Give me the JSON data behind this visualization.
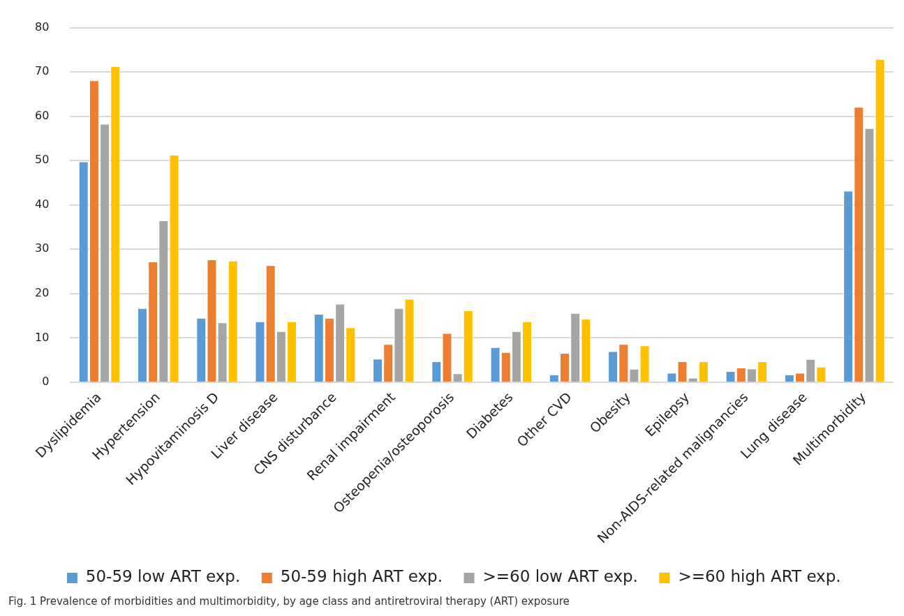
{
  "chart_data": {
    "type": "bar",
    "categories": [
      "Dyslipidemia",
      "Hypertension",
      "Hypovitaminosis D",
      "Liver disease",
      "CNS disturbance",
      "Renal impairment",
      "Osteopenia/osteoporosis",
      "Diabetes",
      "Other CVD",
      "Obesity",
      "Epilepsy",
      "Non-AIDS-related malignancies",
      "Lung disease",
      "Multimorbidity"
    ],
    "series": [
      {
        "name": "50-59 low ART exp.",
        "color": "#5b9bd5",
        "values": [
          49.8,
          16.7,
          14.5,
          13.7,
          15.4,
          5.3,
          4.7,
          7.9,
          1.7,
          7.0,
          2.1,
          2.5,
          1.7,
          43.2
        ]
      },
      {
        "name": "50-59 high ART exp.",
        "color": "#ed7d31",
        "values": [
          68.1,
          27.2,
          27.7,
          26.4,
          14.5,
          8.6,
          11.1,
          6.8,
          6.6,
          8.6,
          4.7,
          3.3,
          2.1,
          62.1
        ]
      },
      {
        "name": ">=60 low ART exp.",
        "color": "#a5a5a5",
        "values": [
          58.3,
          36.5,
          13.5,
          11.5,
          17.7,
          16.7,
          2.0,
          11.5,
          15.6,
          3.0,
          1.0,
          3.1,
          5.2,
          57.3
        ]
      },
      {
        "name": ">=60 high ART exp.",
        "color": "#ffc000",
        "values": [
          71.3,
          51.3,
          27.4,
          13.7,
          12.4,
          18.8,
          16.2,
          13.7,
          14.3,
          8.3,
          4.7,
          4.7,
          3.5,
          72.9
        ]
      }
    ],
    "ylim": [
      0,
      80
    ],
    "yticks": [
      0,
      10,
      20,
      30,
      40,
      50,
      60,
      70,
      80
    ],
    "grid": "y",
    "legend": "bottom",
    "annotations": [
      "Fig. 1  Prevalence of morbidities and multimorbidity, by age class and antiretroviral therapy (ART) exposure"
    ]
  }
}
